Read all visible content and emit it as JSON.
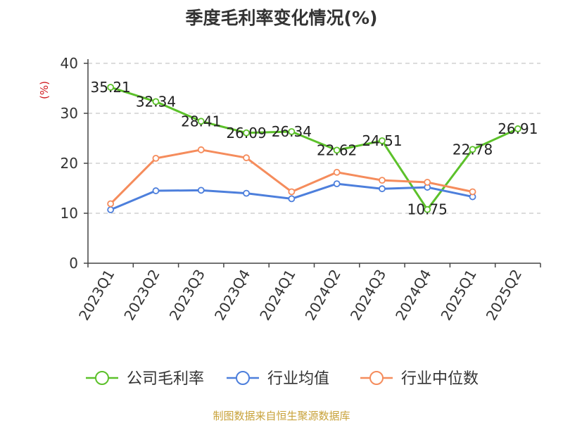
{
  "chart_data": {
    "type": "line",
    "title": "季度毛利率变化情况(%)",
    "ylabel": "(%)",
    "xlabel": "",
    "ylim": [
      0,
      40
    ],
    "yticks": [
      0,
      10,
      20,
      30,
      40
    ],
    "grid": true,
    "legend_position": "bottom",
    "categories": [
      "2023Q1",
      "2023Q2",
      "2023Q3",
      "2023Q4",
      "2024Q1",
      "2024Q2",
      "2024Q3",
      "2024Q4",
      "2025Q1",
      "2025Q2"
    ],
    "series": [
      {
        "name": "公司毛利率",
        "color": "#5cc12a",
        "show_labels": true,
        "values": [
          35.21,
          32.34,
          28.41,
          26.09,
          26.34,
          22.62,
          24.51,
          10.75,
          22.78,
          26.91
        ]
      },
      {
        "name": "行业均值",
        "color": "#4d7fdc",
        "show_labels": false,
        "values": [
          10.7,
          14.5,
          14.6,
          14.0,
          12.9,
          15.9,
          14.9,
          15.2,
          13.3,
          null
        ]
      },
      {
        "name": "行业中位数",
        "color": "#f58c5c",
        "show_labels": false,
        "values": [
          11.9,
          21.0,
          22.7,
          21.1,
          14.3,
          18.2,
          16.6,
          16.2,
          14.3,
          null
        ]
      }
    ]
  },
  "footer": {
    "source": "制图数据来自恒生聚源数据库"
  }
}
